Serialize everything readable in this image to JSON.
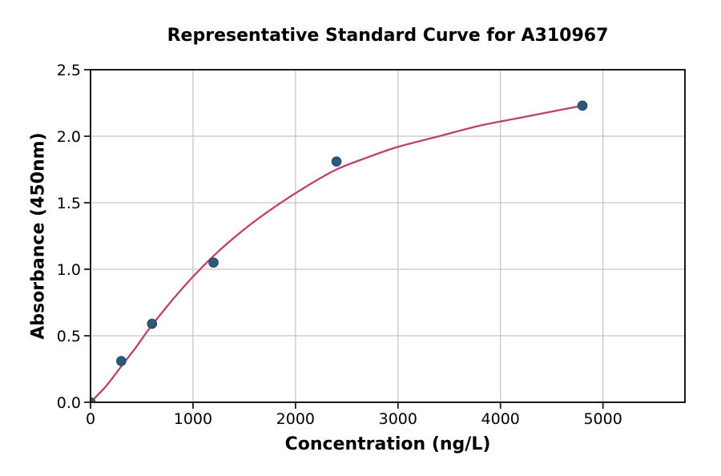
{
  "chart_data": {
    "type": "scatter",
    "title": "Representative Standard Curve for A310967",
    "xlabel": "Concentration (ng/L)",
    "ylabel": "Absorbance (450nm)",
    "xlim": [
      0,
      5800
    ],
    "ylim": [
      0,
      2.5
    ],
    "xticks": [
      0,
      1000,
      2000,
      3000,
      4000,
      5000
    ],
    "xtick_labels": [
      "0",
      "1000",
      "2000",
      "3000",
      "4000",
      "5000"
    ],
    "yticks": [
      0,
      0.5,
      1.0,
      1.5,
      2.0,
      2.5
    ],
    "ytick_labels": [
      "0.0",
      "0.5",
      "1.0",
      "1.5",
      "2.0",
      "2.5"
    ],
    "grid": true,
    "legend": null,
    "points": [
      {
        "x": 0,
        "y": 0.0
      },
      {
        "x": 300,
        "y": 0.31
      },
      {
        "x": 600,
        "y": 0.59
      },
      {
        "x": 1200,
        "y": 1.05
      },
      {
        "x": 2400,
        "y": 1.81
      },
      {
        "x": 4800,
        "y": 2.23
      }
    ],
    "fit_curve": {
      "x": [
        0,
        150,
        300,
        450,
        600,
        900,
        1200,
        1500,
        1800,
        2100,
        2400,
        2700,
        3000,
        3400,
        3800,
        4200,
        4600,
        4800
      ],
      "y": [
        0.0,
        0.12,
        0.27,
        0.42,
        0.58,
        0.86,
        1.1,
        1.3,
        1.47,
        1.62,
        1.75,
        1.84,
        1.92,
        2.0,
        2.08,
        2.14,
        2.2,
        2.23
      ]
    },
    "colors": {
      "marker": "#2e587a",
      "marker_edge": "#22435e",
      "curve": "#bf406a",
      "grid": "#c6c6c6",
      "axis": "#1a1a1a",
      "text": "#000000",
      "background": "#ffffff"
    }
  }
}
